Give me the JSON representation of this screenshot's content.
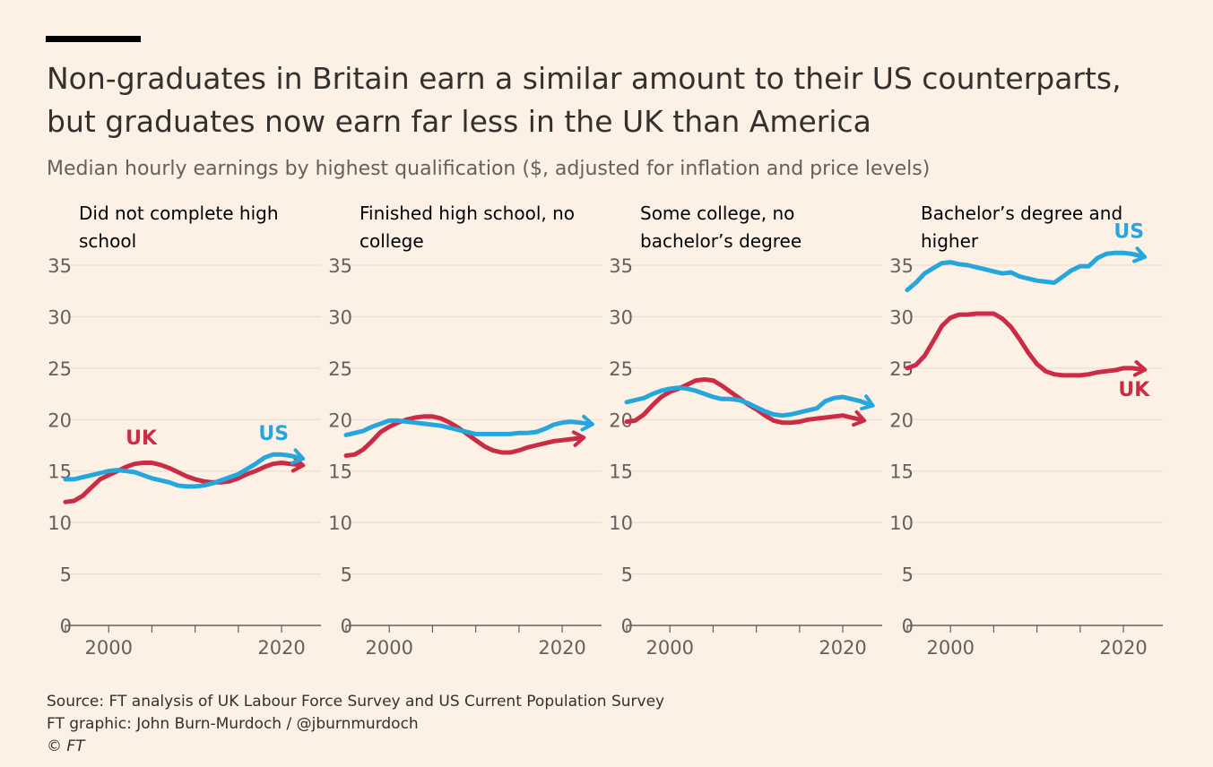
{
  "title": "Non-graduates in Britain earn a similar amount to their US counterparts, but graduates now earn far less in the UK than America",
  "subtitle": "Median hourly earnings by highest qualification ($, adjusted for inflation and price levels)",
  "colors": {
    "UK": "#cc2b45",
    "US": "#25a7dd",
    "background": "#fdf1e5",
    "grid": "#e6d9ce",
    "axis": "#66605c"
  },
  "footer": {
    "source": "Source: FT analysis of UK Labour Force Survey and US Current Population Survey",
    "credit": "FT graphic: John Burn-Murdoch / @jburnmurdoch",
    "copyright": "© FT"
  },
  "chart_data": [
    {
      "type": "line",
      "title": "Did not complete high school",
      "x_ticks": [
        2000,
        2020
      ],
      "xlim": [
        1995,
        2023
      ],
      "ylim": [
        0,
        35
      ],
      "y_ticks": [
        0,
        5,
        10,
        15,
        20,
        25,
        30,
        35
      ],
      "series": [
        {
          "name": "UK",
          "label": "UK",
          "x": [
            1995,
            1996,
            1997,
            1998,
            1999,
            2000,
            2001,
            2002,
            2003,
            2004,
            2005,
            2006,
            2007,
            2008,
            2009,
            2010,
            2011,
            2012,
            2013,
            2014,
            2015,
            2016,
            2017,
            2018,
            2019,
            2020,
            2021,
            2022
          ],
          "values": [
            12,
            12.1,
            12.6,
            13.4,
            14.2,
            14.6,
            15.0,
            15.4,
            15.7,
            15.8,
            15.8,
            15.6,
            15.3,
            14.9,
            14.5,
            14.2,
            14.0,
            13.9,
            13.9,
            14.0,
            14.3,
            14.7,
            15.0,
            15.4,
            15.7,
            15.8,
            15.7,
            15.6
          ]
        },
        {
          "name": "US",
          "label": "US",
          "x": [
            1995,
            1996,
            1997,
            1998,
            1999,
            2000,
            2001,
            2002,
            2003,
            2004,
            2005,
            2006,
            2007,
            2008,
            2009,
            2010,
            2011,
            2012,
            2013,
            2014,
            2015,
            2016,
            2017,
            2018,
            2019,
            2020,
            2021,
            2022
          ],
          "values": [
            14.2,
            14.2,
            14.4,
            14.6,
            14.8,
            15.0,
            15.1,
            15.0,
            14.9,
            14.6,
            14.3,
            14.1,
            13.9,
            13.6,
            13.5,
            13.5,
            13.6,
            13.8,
            14.1,
            14.4,
            14.7,
            15.2,
            15.7,
            16.3,
            16.6,
            16.6,
            16.5,
            16.3
          ]
        }
      ]
    },
    {
      "type": "line",
      "title": "Finished high school, no college",
      "x_ticks": [
        2000,
        2020
      ],
      "xlim": [
        1995,
        2023
      ],
      "ylim": [
        0,
        35
      ],
      "y_ticks": [
        0,
        5,
        10,
        15,
        20,
        25,
        30,
        35
      ],
      "series": [
        {
          "name": "UK",
          "x": [
            1995,
            1996,
            1997,
            1998,
            1999,
            2000,
            2001,
            2002,
            2003,
            2004,
            2005,
            2006,
            2007,
            2008,
            2009,
            2010,
            2011,
            2012,
            2013,
            2014,
            2015,
            2016,
            2017,
            2018,
            2019,
            2020,
            2021,
            2022
          ],
          "values": [
            16.5,
            16.6,
            17.1,
            17.9,
            18.8,
            19.3,
            19.7,
            20.0,
            20.2,
            20.3,
            20.3,
            20.1,
            19.7,
            19.2,
            18.6,
            18.0,
            17.4,
            17.0,
            16.8,
            16.8,
            17.0,
            17.3,
            17.5,
            17.7,
            17.9,
            18.0,
            18.1,
            18.2
          ]
        },
        {
          "name": "US",
          "x": [
            1995,
            1996,
            1997,
            1998,
            1999,
            2000,
            2001,
            2002,
            2003,
            2004,
            2005,
            2006,
            2007,
            2008,
            2009,
            2010,
            2011,
            2012,
            2013,
            2014,
            2015,
            2016,
            2017,
            2018,
            2019,
            2020,
            2021,
            2022,
            2023
          ],
          "values": [
            18.5,
            18.7,
            18.9,
            19.3,
            19.6,
            19.9,
            19.9,
            19.8,
            19.7,
            19.6,
            19.5,
            19.4,
            19.2,
            19.0,
            18.8,
            18.6,
            18.6,
            18.6,
            18.6,
            18.6,
            18.7,
            18.7,
            18.8,
            19.1,
            19.5,
            19.7,
            19.8,
            19.7,
            19.6
          ]
        }
      ]
    },
    {
      "type": "line",
      "title": "Some college, no bachelor’s degree",
      "x_ticks": [
        2000,
        2020
      ],
      "xlim": [
        1995,
        2023
      ],
      "ylim": [
        0,
        35
      ],
      "y_ticks": [
        0,
        5,
        10,
        15,
        20,
        25,
        30,
        35
      ],
      "series": [
        {
          "name": "UK",
          "x": [
            1995,
            1996,
            1997,
            1998,
            1999,
            2000,
            2001,
            2002,
            2003,
            2004,
            2005,
            2006,
            2007,
            2008,
            2009,
            2010,
            2011,
            2012,
            2013,
            2014,
            2015,
            2016,
            2017,
            2018,
            2019,
            2020,
            2021,
            2022
          ],
          "values": [
            19.8,
            19.9,
            20.5,
            21.4,
            22.2,
            22.7,
            23.0,
            23.4,
            23.8,
            23.9,
            23.8,
            23.3,
            22.7,
            22.1,
            21.5,
            21.0,
            20.4,
            19.9,
            19.7,
            19.7,
            19.8,
            20.0,
            20.1,
            20.2,
            20.3,
            20.4,
            20.2,
            20.0
          ]
        },
        {
          "name": "US",
          "x": [
            1995,
            1996,
            1997,
            1998,
            1999,
            2000,
            2001,
            2002,
            2003,
            2004,
            2005,
            2006,
            2007,
            2008,
            2009,
            2010,
            2011,
            2012,
            2013,
            2014,
            2015,
            2016,
            2017,
            2018,
            2019,
            2020,
            2021,
            2022,
            2023
          ],
          "values": [
            21.7,
            21.9,
            22.1,
            22.5,
            22.8,
            23.0,
            23.1,
            23.0,
            22.8,
            22.5,
            22.2,
            22.0,
            22.0,
            21.9,
            21.6,
            21.2,
            20.8,
            20.5,
            20.4,
            20.5,
            20.7,
            20.9,
            21.1,
            21.8,
            22.1,
            22.2,
            22.0,
            21.8,
            21.5
          ]
        }
      ]
    },
    {
      "type": "line",
      "title": "Bachelor’s degree and higher",
      "x_ticks": [
        2000,
        2020
      ],
      "xlim": [
        1995,
        2023
      ],
      "ylim": [
        0,
        35
      ],
      "y_ticks": [
        0,
        5,
        10,
        15,
        20,
        25,
        30,
        35
      ],
      "series": [
        {
          "name": "UK",
          "label": "UK",
          "x": [
            1995,
            1996,
            1997,
            1998,
            1999,
            2000,
            2001,
            2002,
            2003,
            2004,
            2005,
            2006,
            2007,
            2008,
            2009,
            2010,
            2011,
            2012,
            2013,
            2014,
            2015,
            2016,
            2017,
            2018,
            2019,
            2020,
            2021,
            2022
          ],
          "values": [
            25.0,
            25.3,
            26.2,
            27.6,
            29.1,
            29.9,
            30.2,
            30.2,
            30.3,
            30.3,
            30.3,
            29.8,
            29.0,
            27.8,
            26.5,
            25.4,
            24.7,
            24.4,
            24.3,
            24.3,
            24.3,
            24.4,
            24.6,
            24.7,
            24.8,
            25.0,
            25.0,
            24.9
          ]
        },
        {
          "name": "US",
          "label": "US",
          "x": [
            1995,
            1996,
            1997,
            1998,
            1999,
            2000,
            2001,
            2002,
            2003,
            2004,
            2005,
            2006,
            2007,
            2008,
            2009,
            2010,
            2011,
            2012,
            2013,
            2014,
            2015,
            2016,
            2017,
            2018,
            2019,
            2020,
            2021,
            2022
          ],
          "values": [
            32.6,
            33.3,
            34.2,
            34.7,
            35.2,
            35.3,
            35.1,
            35.0,
            34.8,
            34.6,
            34.4,
            34.2,
            34.3,
            33.9,
            33.7,
            33.5,
            33.4,
            33.3,
            33.9,
            34.5,
            34.9,
            34.9,
            35.7,
            36.1,
            36.2,
            36.2,
            36.1,
            35.9
          ]
        }
      ]
    }
  ]
}
